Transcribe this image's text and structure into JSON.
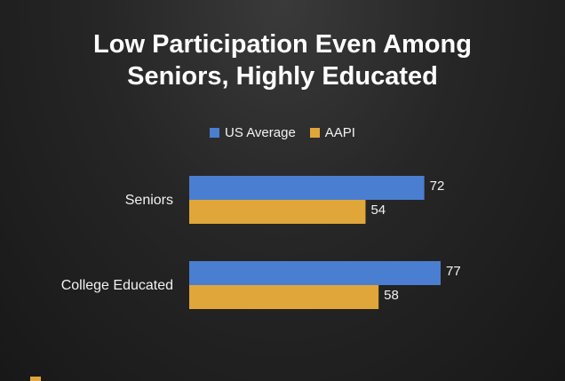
{
  "chart_data": {
    "type": "bar",
    "orientation": "horizontal",
    "title": "Low Participation Even Among Seniors, Highly Educated",
    "title_lines": [
      "Low Participation Even Among",
      "Seniors, Highly Educated"
    ],
    "categories": [
      "Seniors",
      "College Educated"
    ],
    "series": [
      {
        "name": "US Average",
        "values": [
          72,
          77
        ],
        "color": "#4a7ed0"
      },
      {
        "name": "AAPI",
        "values": [
          54,
          58
        ],
        "color": "#e0a63a"
      }
    ],
    "xlim": [
      0,
      77
    ],
    "grid": false,
    "legend_position": "top-center"
  }
}
